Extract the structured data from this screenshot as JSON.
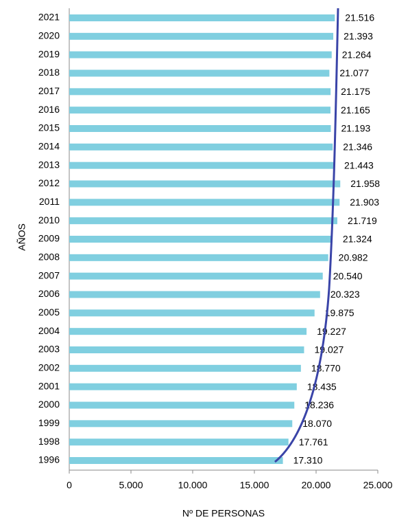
{
  "chart_data": {
    "type": "bar",
    "orientation": "horizontal",
    "xlabel": "Nº DE PERSONAS",
    "ylabel": "AÑOS",
    "categories": [
      "2021",
      "2020",
      "2019",
      "2018",
      "2017",
      "2016",
      "2015",
      "2014",
      "2013",
      "2012",
      "2011",
      "2010",
      "2009",
      "2008",
      "2007",
      "2006",
      "2005",
      "2004",
      "2003",
      "2002",
      "2001",
      "2000",
      "1999",
      "1998",
      "1996"
    ],
    "values": [
      21516,
      21393,
      21264,
      21077,
      21175,
      21165,
      21193,
      21346,
      21443,
      21958,
      21903,
      21719,
      21324,
      20982,
      20540,
      20323,
      19875,
      19227,
      19027,
      18770,
      18435,
      18236,
      18070,
      17761,
      17310
    ],
    "value_labels": [
      "21.516",
      "21.393",
      "21.264",
      "21.077",
      "21.175",
      "21.165",
      "21.193",
      "21.346",
      "21.443",
      "21.958",
      "21.903",
      "21.719",
      "21.324",
      "20.982",
      "20.540",
      "20.323",
      "19.875",
      "19.227",
      "19.027",
      "18.770",
      "18.435",
      "18.236",
      "18.070",
      "17.761",
      "17.310"
    ],
    "color": "#80cfe0",
    "xlim": [
      0,
      25000
    ],
    "xticks": [
      0,
      {
        "value": 5000,
        "label": "5.000"
      },
      {
        "value": 10000,
        "label": "10.000"
      },
      {
        "value": 15000,
        "label": "15.000"
      },
      {
        "value": 20000,
        "label": "20.000"
      },
      {
        "value": 25000,
        "label": "25.000"
      }
    ],
    "grid": false
  }
}
